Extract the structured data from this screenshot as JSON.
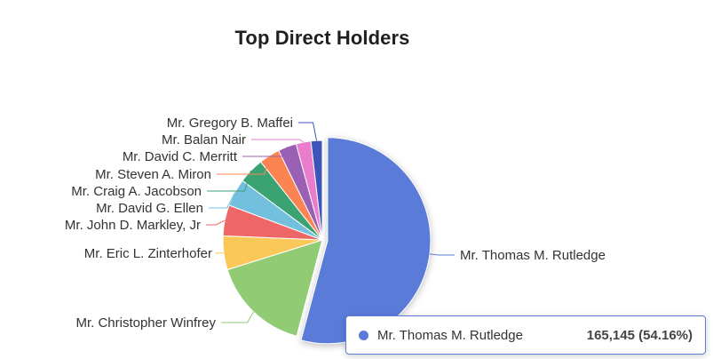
{
  "chart_data": {
    "type": "pie",
    "title": "Top Direct Holders",
    "slices": [
      {
        "label": "Mr. Thomas M. Rutledge",
        "percent": 54.16,
        "color": "#5b7bd9"
      },
      {
        "label": "Mr. Christopher Winfrey",
        "percent": 16.0,
        "color": "#91cc75"
      },
      {
        "label": "Mr. Eric L. Zinterhofer",
        "percent": 5.5,
        "color": "#fac858"
      },
      {
        "label": "Mr. John D. Markley, Jr",
        "percent": 5.0,
        "color": "#ee6666"
      },
      {
        "label": "Mr. David G. Ellen",
        "percent": 4.5,
        "color": "#73c0de"
      },
      {
        "label": "Mr. Craig A. Jacobson",
        "percent": 4.2,
        "color": "#3ba272"
      },
      {
        "label": "Mr. Steven A. Miron",
        "percent": 3.4,
        "color": "#fc8452"
      },
      {
        "label": "Mr. David C. Merritt",
        "percent": 3.0,
        "color": "#9a60b4"
      },
      {
        "label": "Mr. Balan Nair",
        "percent": 2.4,
        "color": "#ea7ccc"
      },
      {
        "label": "Mr. Gregory B. Maffei",
        "percent": 1.84,
        "color": "#3d55b8"
      }
    ]
  },
  "tooltip": {
    "name": "Mr. Thomas M. Rutledge",
    "value": "165,145 (54.16%)",
    "color": "#5b7bd9"
  }
}
